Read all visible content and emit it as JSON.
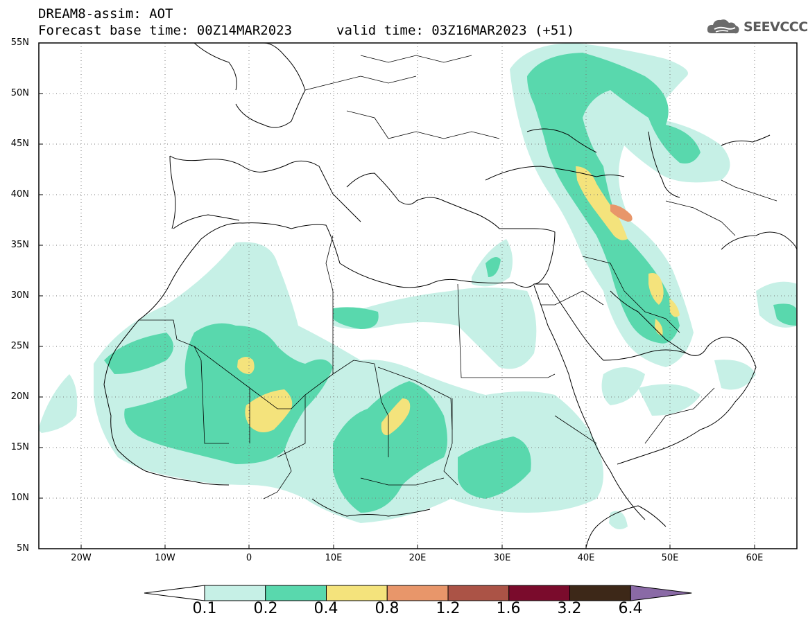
{
  "header": {
    "line1": "DREAM8-assim: AOT",
    "line2a": "Forecast base time: 00Z14MAR2023",
    "line2b": "valid time: 03Z16MAR2023 (+51)"
  },
  "logo": {
    "icon": "cloud-icon",
    "text": "SEEVCCC"
  },
  "map": {
    "lon_range": [
      -25,
      65
    ],
    "lat_range": [
      5,
      55
    ],
    "lat_ticks": [
      "55N",
      "50N",
      "45N",
      "40N",
      "35N",
      "30N",
      "25N",
      "20N",
      "15N",
      "10N",
      "5N"
    ],
    "lon_ticks": [
      "20W",
      "10W",
      "0",
      "10E",
      "20E",
      "30E",
      "40E",
      "50E",
      "60E"
    ],
    "gridlines": "dotted"
  },
  "colorbar": {
    "labels": [
      "0.1",
      "0.2",
      "0.4",
      "0.8",
      "1.2",
      "1.6",
      "3.2",
      "6.4"
    ],
    "colors": [
      "#ffffff",
      "#c6f0e6",
      "#59d8ad",
      "#f4e37c",
      "#e8966a",
      "#ab5346",
      "#7a0b2c",
      "#3d2818",
      "#8a6aa6"
    ]
  }
}
